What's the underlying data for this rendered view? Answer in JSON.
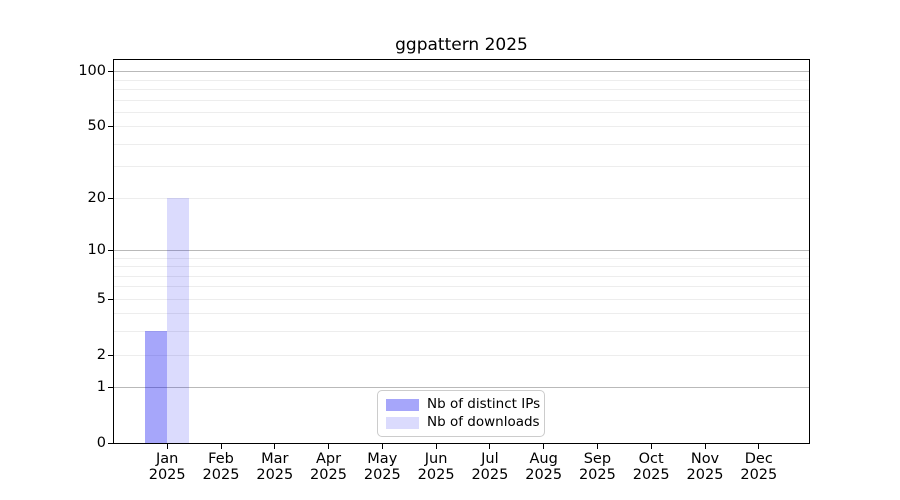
{
  "chart_data": {
    "type": "bar",
    "title": "ggpattern 2025",
    "categories": [
      "Jan 2025",
      "Feb 2025",
      "Mar 2025",
      "Apr 2025",
      "May 2025",
      "Jun 2025",
      "Jul 2025",
      "Aug 2025",
      "Sep 2025",
      "Oct 2025",
      "Nov 2025",
      "Dec 2025"
    ],
    "x_tick_months": [
      "Jan",
      "Feb",
      "Mar",
      "Apr",
      "May",
      "Jun",
      "Jul",
      "Aug",
      "Sep",
      "Oct",
      "Nov",
      "Dec"
    ],
    "x_tick_year": "2025",
    "series": [
      {
        "name": "Nb of distinct IPs",
        "color": "rgba(0,0,240,0.35)",
        "values": [
          3,
          0,
          0,
          0,
          0,
          0,
          0,
          0,
          0,
          0,
          0,
          0
        ]
      },
      {
        "name": "Nb of downloads",
        "color": "rgba(0,0,240,0.14)",
        "values": [
          20,
          0,
          0,
          0,
          0,
          0,
          0,
          0,
          0,
          0,
          0,
          0
        ]
      }
    ],
    "y_scale": "log1p",
    "ylim": [
      0,
      115
    ],
    "y_major_ticks": [
      0,
      1,
      2,
      5,
      10,
      20,
      50,
      100
    ],
    "y_minor_ticks": [
      3,
      4,
      6,
      7,
      8,
      9,
      30,
      40,
      60,
      70,
      80,
      90
    ],
    "y_strong_gridlines": [
      1,
      10,
      100
    ],
    "grid": true,
    "legend_position": "lower center"
  },
  "colors": {
    "background": "#ffffff",
    "spine": "#000000",
    "grid_strong": "#b9b9b9",
    "grid_light": "#ededed",
    "text": "#000000",
    "legend_border": "#cccccc",
    "legend_background": "#ffffff"
  }
}
